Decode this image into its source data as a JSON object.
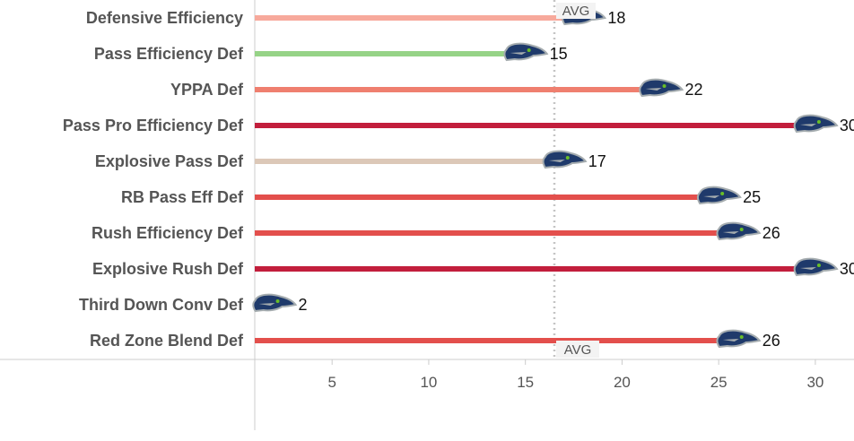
{
  "chart_data": {
    "type": "bar",
    "title": "",
    "xlabel": "",
    "ylabel": "",
    "categories": [
      "Defensive Efficiency",
      "Pass Efficiency Def",
      "YPPA Def",
      "Pass Pro Efficiency Def",
      "Explosive Pass Def",
      "RB Pass Eff Def",
      "Rush Efficiency Def",
      "Explosive Rush Def",
      "Third Down Conv Def",
      "Red Zone Blend Def"
    ],
    "values": [
      18,
      15,
      22,
      30,
      17,
      25,
      26,
      30,
      2,
      26
    ],
    "bar_colors": [
      "#f7a99c",
      "#96d387",
      "#ef7f6f",
      "#c21e3c",
      "#dcc8b8",
      "#e34f4c",
      "#e34f4c",
      "#c21e3c",
      "#e34f4c",
      "#e34f4c"
    ],
    "xlim": [
      1,
      32
    ],
    "x_ticks": [
      5,
      10,
      15,
      20,
      25,
      30
    ],
    "average": 16.5,
    "average_label": "AVG",
    "marker_icon": "seahawks-logo-icon",
    "marker_colors": {
      "navy": "#1f3a6b",
      "gray": "#a5acaf",
      "green": "#69be28"
    },
    "grid": false
  }
}
